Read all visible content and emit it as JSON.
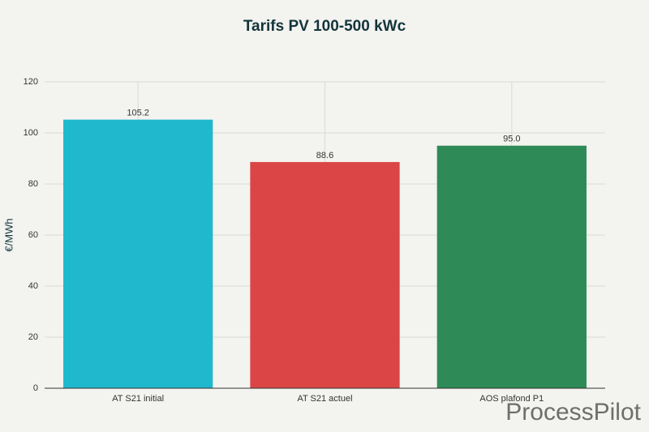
{
  "chart_data": {
    "type": "bar",
    "title": "Tarifs PV 100-500 kWc",
    "y_label": "€/MWh",
    "categories": [
      "AT S21 initial",
      "AT S21 actuel",
      "AOS plafond P1"
    ],
    "values": [
      105.2,
      88.6,
      95.0
    ],
    "value_labels": [
      "105.2",
      "88.6",
      "95.0"
    ],
    "colors": [
      "#1fb8cd",
      "#db4545",
      "#2e8b57"
    ],
    "ylim": [
      0,
      120
    ],
    "yticks": [
      0,
      20,
      40,
      60,
      80,
      100,
      120
    ],
    "grid": true,
    "watermark": "ProcessPilot"
  }
}
